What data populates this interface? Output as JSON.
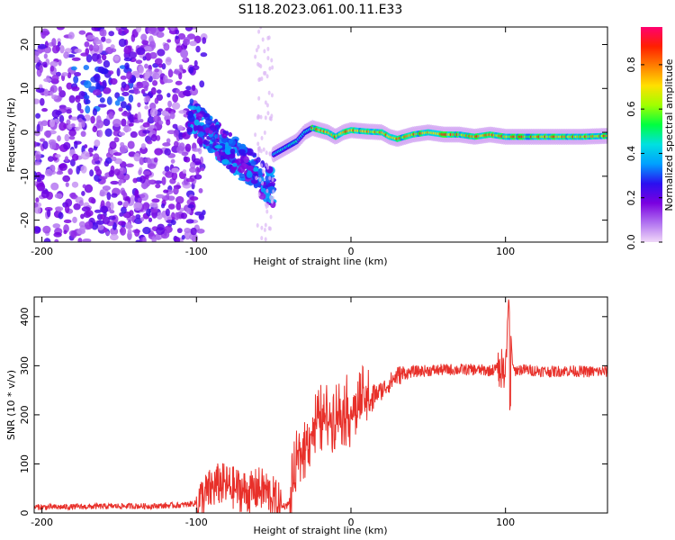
{
  "title": "S118.2023.061.00.11.E33",
  "chart_data": [
    {
      "type": "heatmap",
      "xlabel": "Height of straight line (km)",
      "ylabel": "Frequency (Hz)",
      "xlim": [
        -205,
        166
      ],
      "ylim": [
        -25,
        24
      ],
      "xticks": [
        -200,
        -100,
        0,
        100
      ],
      "yticks": [
        -20,
        -10,
        0,
        10,
        20
      ],
      "colorbar": {
        "label": "Normalized spectral amplitude",
        "range": [
          0.0,
          0.97
        ],
        "ticks": [
          0.0,
          0.2,
          0.4,
          0.6,
          0.8
        ],
        "colormap": [
          "#f0d8f8",
          "#b070f0",
          "#7a00e0",
          "#2a10f0",
          "#00a0ff",
          "#00e0e0",
          "#00ff40",
          "#a0ff00",
          "#ffe000",
          "#ff8000",
          "#ff2000",
          "#ff0070"
        ]
      },
      "ridge": {
        "x": [
          -50,
          -45,
          -40,
          -35,
          -30,
          -25,
          -20,
          -15,
          -10,
          -5,
          0,
          10,
          20,
          25,
          30,
          40,
          50,
          60,
          70,
          80,
          90,
          100,
          110,
          120,
          130,
          140,
          150,
          166
        ],
        "y": [
          -5,
          -4,
          -3,
          -2,
          0,
          1,
          0.5,
          0,
          -1,
          0,
          0.5,
          0.2,
          0,
          -1,
          -1.5,
          -0.5,
          0,
          -0.5,
          -0.5,
          -1,
          -0.5,
          -1,
          -1,
          -1,
          -1,
          -1,
          -1,
          -0.8
        ]
      }
    },
    {
      "type": "line",
      "xlabel": "Height of straight line (km)",
      "ylabel": "SNR (10 * v/v)",
      "xlim": [
        -205,
        166
      ],
      "ylim": [
        0,
        440
      ],
      "xticks": [
        -200,
        -100,
        0,
        100
      ],
      "yticks": [
        0,
        100,
        200,
        300,
        400
      ],
      "color": "#e8302a",
      "series": [
        {
          "x": [
            -205,
            -190,
            -170,
            -150,
            -130,
            -110,
            -100,
            -95,
            -90,
            -85,
            -80,
            -75,
            -70,
            -65,
            -60,
            -55,
            -50,
            -45,
            -40,
            -35,
            -30,
            -25,
            -20,
            -15,
            -10,
            -5,
            0,
            5,
            10,
            15,
            20,
            25,
            30,
            40,
            50,
            60,
            70,
            80,
            90,
            95,
            100,
            102,
            105,
            110,
            120,
            130,
            140,
            150,
            160,
            166
          ],
          "y": [
            12,
            12,
            13,
            14,
            14,
            16,
            20,
            35,
            50,
            60,
            55,
            50,
            45,
            40,
            50,
            45,
            30,
            12,
            18,
            100,
            140,
            170,
            190,
            195,
            200,
            210,
            205,
            220,
            230,
            240,
            250,
            265,
            280,
            288,
            290,
            292,
            292,
            292,
            290,
            295,
            295,
            430,
            290,
            292,
            290,
            288,
            290,
            288,
            288,
            288
          ]
        }
      ]
    }
  ]
}
